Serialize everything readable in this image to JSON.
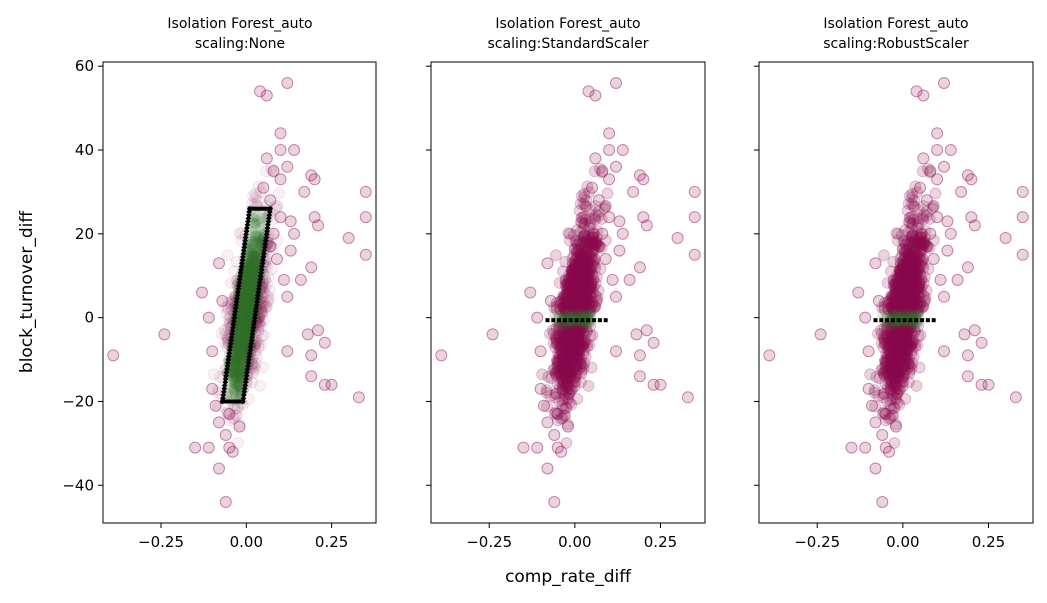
{
  "chart_data": [
    {
      "type": "scatter",
      "title_line1": "Isolation Forest_auto",
      "title_line2": "scaling:None",
      "xlabel": "",
      "ylabel": "block_turnover_diff",
      "xlim": [
        -0.42,
        0.38
      ],
      "ylim": [
        -49,
        61
      ],
      "xticks": [
        -0.25,
        0.0,
        0.25
      ],
      "xtick_labels": [
        "−0.25",
        "0.00",
        "0.25"
      ],
      "yticks": [
        -40,
        -20,
        0,
        20,
        40,
        60
      ],
      "ytick_labels": [
        "−40",
        "−20",
        "0",
        "20",
        "40",
        "60"
      ],
      "inlier_band": {
        "kind": "diagonal",
        "y_min": -20,
        "y_max": 26,
        "x_at_y_min": -0.04,
        "x_at_y_max": 0.04,
        "half_width": 0.03
      },
      "outliers": [
        [
          -0.39,
          -9
        ],
        [
          -0.24,
          -4
        ],
        [
          -0.13,
          6
        ],
        [
          -0.15,
          -31
        ],
        [
          -0.11,
          -31
        ],
        [
          -0.08,
          13
        ],
        [
          -0.08,
          -36
        ],
        [
          -0.06,
          -44
        ],
        [
          0.04,
          54
        ],
        [
          0.06,
          53
        ],
        [
          0.12,
          56
        ],
        [
          0.1,
          44
        ],
        [
          0.1,
          40
        ],
        [
          0.14,
          40
        ],
        [
          0.12,
          36
        ],
        [
          0.1,
          33
        ],
        [
          0.17,
          30
        ],
        [
          0.19,
          34
        ],
        [
          0.2,
          33
        ],
        [
          0.2,
          24
        ],
        [
          0.21,
          22
        ],
        [
          0.14,
          20
        ],
        [
          0.13,
          23
        ],
        [
          0.13,
          16
        ],
        [
          0.19,
          12
        ],
        [
          0.16,
          9
        ],
        [
          0.12,
          5
        ],
        [
          0.12,
          -8
        ],
        [
          0.18,
          -4
        ],
        [
          0.21,
          -3
        ],
        [
          0.23,
          -6
        ],
        [
          0.19,
          -9
        ],
        [
          0.19,
          -14
        ],
        [
          0.23,
          -16
        ],
        [
          0.25,
          -16
        ],
        [
          0.3,
          19
        ],
        [
          0.33,
          -19
        ],
        [
          0.35,
          30
        ],
        [
          0.35,
          24
        ],
        [
          0.35,
          15
        ],
        [
          0.06,
          38
        ],
        [
          0.08,
          35
        ],
        [
          0.05,
          31
        ],
        [
          0.07,
          28
        ],
        [
          -0.1,
          -17
        ],
        [
          -0.09,
          -21
        ],
        [
          -0.08,
          -25
        ],
        [
          -0.06,
          -28
        ],
        [
          -0.05,
          -31
        ],
        [
          -0.04,
          -32
        ],
        [
          -0.1,
          -8
        ],
        [
          -0.11,
          0
        ],
        [
          -0.07,
          4
        ],
        [
          -0.05,
          -23
        ],
        [
          -0.02,
          -26
        ],
        [
          0.08,
          20
        ],
        [
          0.1,
          24
        ],
        [
          0.09,
          14
        ],
        [
          0.11,
          9
        ],
        [
          0.07,
          17
        ]
      ]
    },
    {
      "type": "scatter",
      "title_line1": "Isolation Forest_auto",
      "title_line2": "scaling:StandardScaler",
      "xlabel": "comp_rate_diff",
      "ylabel": "",
      "xlim": [
        -0.42,
        0.38
      ],
      "ylim": [
        -49,
        61
      ],
      "xticks": [
        -0.25,
        0.0,
        0.25
      ],
      "xtick_labels": [
        "−0.25",
        "0.00",
        "0.25"
      ],
      "yticks": [
        -40,
        -20,
        0,
        20,
        40,
        60
      ],
      "inlier_band": {
        "kind": "horizontal",
        "y_min": -2,
        "y_max": 1.5,
        "x_min": -0.08,
        "x_max": 0.09
      },
      "outliers": [
        [
          -0.39,
          -9
        ],
        [
          -0.24,
          -4
        ],
        [
          -0.13,
          6
        ],
        [
          -0.15,
          -31
        ],
        [
          -0.11,
          -31
        ],
        [
          -0.08,
          13
        ],
        [
          -0.08,
          -36
        ],
        [
          -0.06,
          -44
        ],
        [
          0.04,
          54
        ],
        [
          0.06,
          53
        ],
        [
          0.12,
          56
        ],
        [
          0.1,
          44
        ],
        [
          0.1,
          40
        ],
        [
          0.14,
          40
        ],
        [
          0.12,
          36
        ],
        [
          0.1,
          33
        ],
        [
          0.17,
          30
        ],
        [
          0.19,
          34
        ],
        [
          0.2,
          33
        ],
        [
          0.2,
          24
        ],
        [
          0.21,
          22
        ],
        [
          0.14,
          20
        ],
        [
          0.13,
          23
        ],
        [
          0.13,
          16
        ],
        [
          0.19,
          12
        ],
        [
          0.16,
          9
        ],
        [
          0.12,
          5
        ],
        [
          0.12,
          -8
        ],
        [
          0.18,
          -4
        ],
        [
          0.21,
          -3
        ],
        [
          0.23,
          -6
        ],
        [
          0.19,
          -9
        ],
        [
          0.19,
          -14
        ],
        [
          0.23,
          -16
        ],
        [
          0.25,
          -16
        ],
        [
          0.3,
          19
        ],
        [
          0.33,
          -19
        ],
        [
          0.35,
          30
        ],
        [
          0.35,
          24
        ],
        [
          0.35,
          15
        ],
        [
          0.06,
          38
        ],
        [
          0.08,
          35
        ],
        [
          0.05,
          31
        ],
        [
          0.07,
          28
        ],
        [
          -0.1,
          -17
        ],
        [
          -0.09,
          -21
        ],
        [
          -0.08,
          -25
        ],
        [
          -0.06,
          -28
        ],
        [
          -0.05,
          -31
        ],
        [
          -0.04,
          -32
        ],
        [
          -0.1,
          -8
        ],
        [
          -0.11,
          0
        ],
        [
          -0.07,
          4
        ],
        [
          -0.05,
          -23
        ],
        [
          -0.02,
          -26
        ],
        [
          0.08,
          20
        ],
        [
          0.1,
          24
        ],
        [
          0.09,
          14
        ],
        [
          0.11,
          9
        ],
        [
          0.07,
          17
        ]
      ]
    },
    {
      "type": "scatter",
      "title_line1": "Isolation Forest_auto",
      "title_line2": "scaling:RobustScaler",
      "xlabel": "",
      "ylabel": "",
      "xlim": [
        -0.42,
        0.38
      ],
      "ylim": [
        -49,
        61
      ],
      "xticks": [
        -0.25,
        0.0,
        0.25
      ],
      "xtick_labels": [
        "−0.25",
        "0.00",
        "0.25"
      ],
      "yticks": [
        -40,
        -20,
        0,
        20,
        40,
        60
      ],
      "inlier_band": {
        "kind": "horizontal",
        "y_min": -2,
        "y_max": 1.5,
        "x_min": -0.08,
        "x_max": 0.09
      },
      "outliers": [
        [
          -0.39,
          -9
        ],
        [
          -0.24,
          -4
        ],
        [
          -0.13,
          6
        ],
        [
          -0.15,
          -31
        ],
        [
          -0.11,
          -31
        ],
        [
          -0.08,
          13
        ],
        [
          -0.08,
          -36
        ],
        [
          -0.06,
          -44
        ],
        [
          0.04,
          54
        ],
        [
          0.06,
          53
        ],
        [
          0.12,
          56
        ],
        [
          0.1,
          44
        ],
        [
          0.1,
          40
        ],
        [
          0.14,
          40
        ],
        [
          0.12,
          36
        ],
        [
          0.1,
          33
        ],
        [
          0.17,
          30
        ],
        [
          0.19,
          34
        ],
        [
          0.2,
          33
        ],
        [
          0.2,
          24
        ],
        [
          0.21,
          22
        ],
        [
          0.14,
          20
        ],
        [
          0.13,
          23
        ],
        [
          0.13,
          16
        ],
        [
          0.19,
          12
        ],
        [
          0.16,
          9
        ],
        [
          0.12,
          5
        ],
        [
          0.12,
          -8
        ],
        [
          0.18,
          -4
        ],
        [
          0.21,
          -3
        ],
        [
          0.23,
          -6
        ],
        [
          0.19,
          -9
        ],
        [
          0.19,
          -14
        ],
        [
          0.23,
          -16
        ],
        [
          0.25,
          -16
        ],
        [
          0.3,
          19
        ],
        [
          0.33,
          -19
        ],
        [
          0.35,
          30
        ],
        [
          0.35,
          24
        ],
        [
          0.35,
          15
        ],
        [
          0.06,
          38
        ],
        [
          0.08,
          35
        ],
        [
          0.05,
          31
        ],
        [
          0.07,
          28
        ],
        [
          -0.1,
          -17
        ],
        [
          -0.09,
          -21
        ],
        [
          -0.08,
          -25
        ],
        [
          -0.06,
          -28
        ],
        [
          -0.05,
          -31
        ],
        [
          -0.04,
          -32
        ],
        [
          -0.1,
          -8
        ],
        [
          -0.11,
          0
        ],
        [
          -0.07,
          4
        ],
        [
          -0.05,
          -23
        ],
        [
          -0.02,
          -26
        ],
        [
          0.08,
          20
        ],
        [
          0.1,
          24
        ],
        [
          0.09,
          14
        ],
        [
          0.11,
          9
        ],
        [
          0.07,
          17
        ]
      ]
    }
  ],
  "colors": {
    "outlier": "#8b0a50",
    "inlier": "#2f6e2a",
    "boundary": "#000000"
  }
}
